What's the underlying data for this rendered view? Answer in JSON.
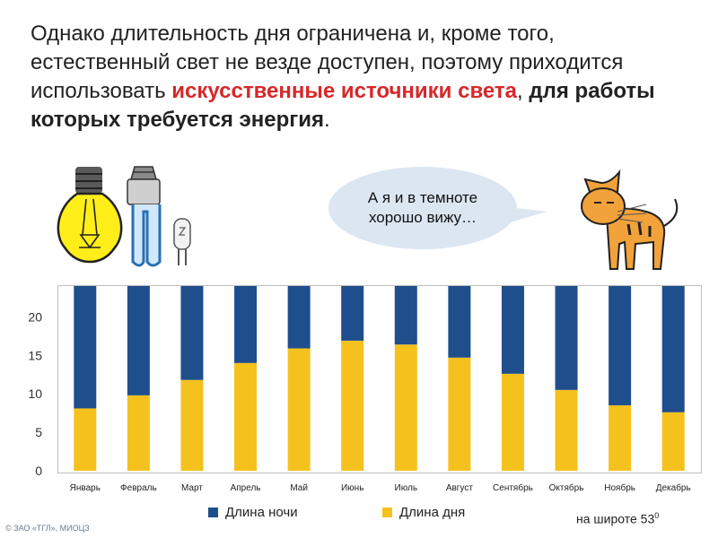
{
  "text": {
    "part1": "Однако длительность дня ограничена и, кроме того, естественный свет не везде доступен, поэтому приходится использовать ",
    "highlight": "искусственные источники света",
    "part2": ", ",
    "bold": "для работы которых требуется энергия",
    "end": "."
  },
  "speech_bubble": {
    "line1": "А я и в темноте",
    "line2": "хорошо вижу…"
  },
  "icons": [
    "incandescent-bulb-icon",
    "energy-saving-bulb-icon",
    "halogen-capsule-icon",
    "cat-icon"
  ],
  "colors": {
    "night": "#1f4e8c",
    "day": "#f5c11d",
    "highlight": "#d7272a"
  },
  "chart_data": {
    "type": "bar",
    "stacked": true,
    "categories": [
      "Январь",
      "Февраль",
      "Март",
      "Апрель",
      "Май",
      "Июнь",
      "Июль",
      "Август",
      "Сентябрь",
      "Октябрь",
      "Ноябрь",
      "Декабрь"
    ],
    "series": [
      {
        "name": "Длина дня",
        "values": [
          8.1,
          9.8,
          11.8,
          14.0,
          15.9,
          16.9,
          16.4,
          14.7,
          12.6,
          10.5,
          8.5,
          7.6
        ]
      },
      {
        "name": "Длина ночи",
        "values": [
          15.9,
          14.2,
          12.2,
          10.0,
          8.1,
          7.1,
          7.6,
          9.3,
          11.4,
          13.5,
          15.5,
          16.4
        ]
      }
    ],
    "ylim": [
      0,
      24
    ],
    "yticks": [
      0,
      5,
      10,
      15,
      20
    ],
    "legend": [
      "Длина ночи",
      "Длина дня"
    ],
    "legend_position": "bottom",
    "grid": false
  },
  "note": {
    "text": "на широте 53",
    "sup": "0"
  },
  "copyright": "© ЗАО «ТГЛ», МИОЦЗ"
}
